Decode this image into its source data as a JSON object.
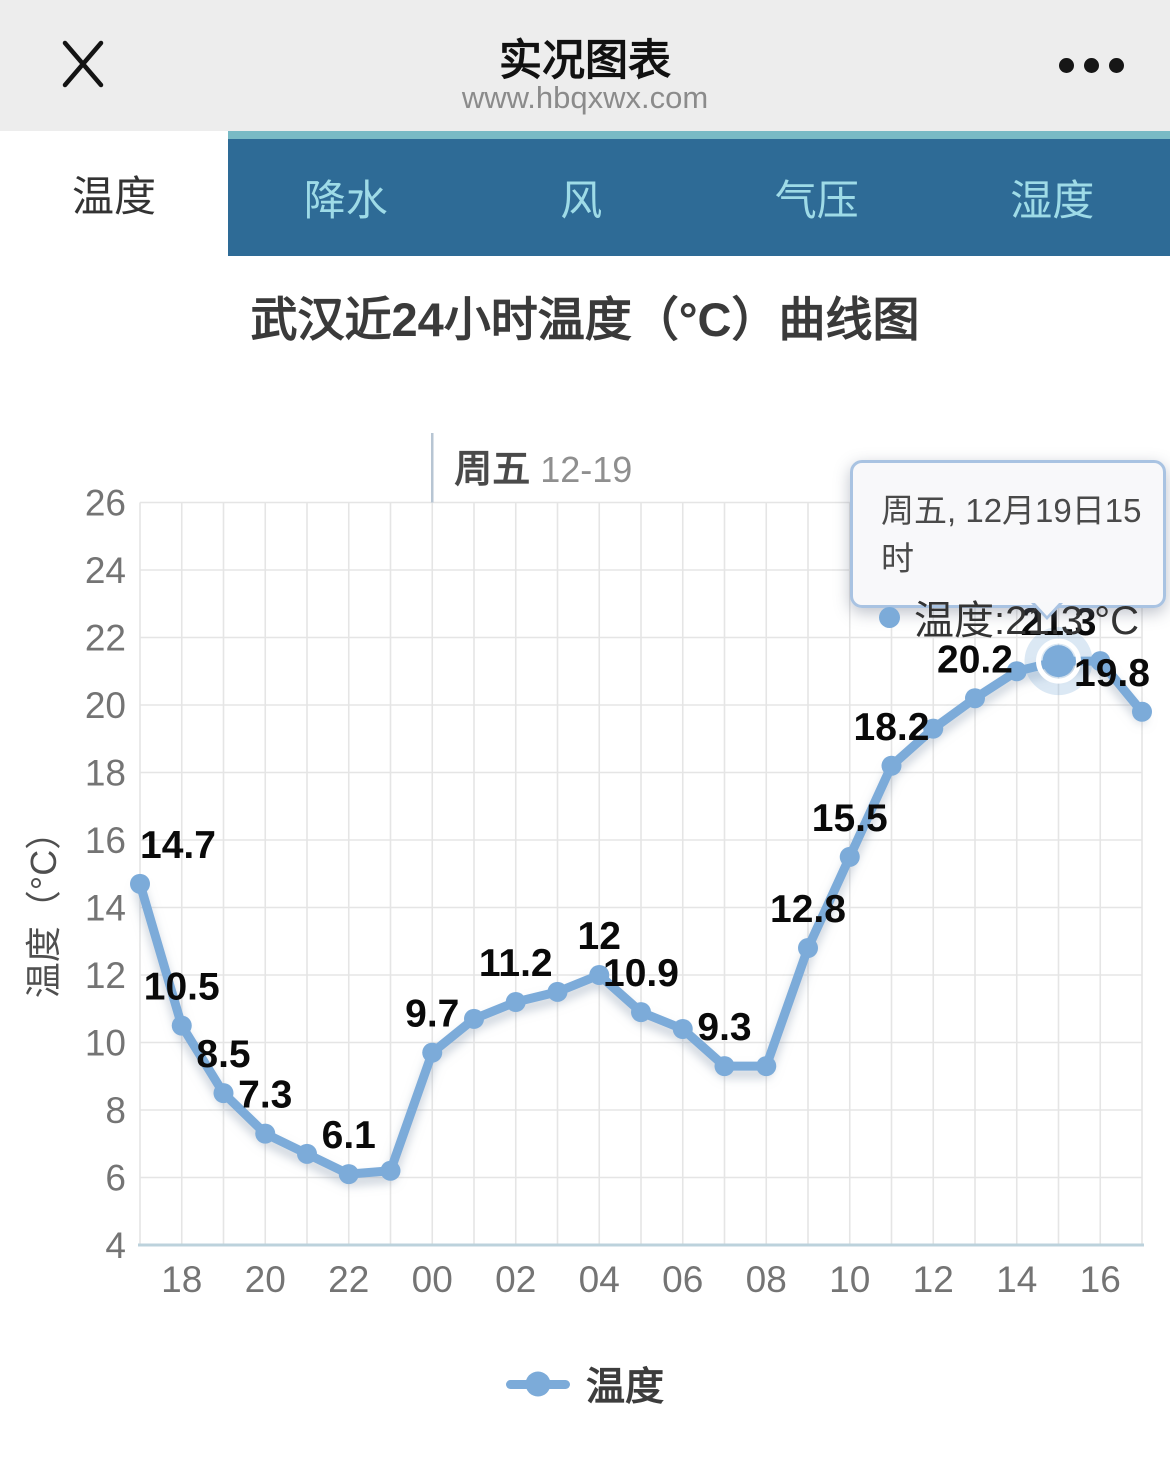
{
  "header": {
    "title": "实况图表",
    "url": "www.hbqxwx.com"
  },
  "tabs": {
    "items": [
      {
        "label": "温度",
        "active": true
      },
      {
        "label": "降水",
        "active": false
      },
      {
        "label": "风",
        "active": false
      },
      {
        "label": "气压",
        "active": false
      },
      {
        "label": "湿度",
        "active": false
      }
    ]
  },
  "page": {
    "chart_heading": "武汉近24小时温度（°C）曲线图"
  },
  "colors": {
    "line": "#7cabd9",
    "halo": "rgba(124,171,217,0.28)",
    "grid": "#e5e5e5",
    "axis_line": "#bcd2dc",
    "day_line": "#b7c5d3",
    "tick_text": "#747474",
    "point_label": "#0a0a0a",
    "axis_name": "#4f4f4f",
    "day_bold": "#4a4a4a",
    "day_light": "#8f8f8f",
    "tab_bar_bg": "#2e6b96",
    "tab_text": "#9edbe7",
    "tab_strip": "#79bac5",
    "tooltip_border": "#a9c3e2"
  },
  "chart_data": {
    "type": "line",
    "title": "武汉近24小时温度（°C）曲线图",
    "xlabel": "",
    "ylabel": "温度（°C）",
    "ylim": [
      4,
      26
    ],
    "y_tick_step": 2,
    "grid": true,
    "legend_position": "bottom",
    "series_name": "温度",
    "points": [
      {
        "x": "17",
        "y": 14.7,
        "label": "14.7",
        "label_dx": 38
      },
      {
        "x": "18",
        "y": 10.5,
        "label": "10.5"
      },
      {
        "x": "19",
        "y": 8.5,
        "label": "8.5"
      },
      {
        "x": "20",
        "y": 7.3,
        "label": "7.3"
      },
      {
        "x": "21",
        "y": 6.7
      },
      {
        "x": "22",
        "y": 6.1,
        "label": "6.1"
      },
      {
        "x": "23",
        "y": 6.2
      },
      {
        "x": "00",
        "y": 9.7,
        "label": "9.7"
      },
      {
        "x": "01",
        "y": 10.7
      },
      {
        "x": "02",
        "y": 11.2,
        "label": "11.2"
      },
      {
        "x": "03",
        "y": 11.5
      },
      {
        "x": "04",
        "y": 12,
        "label": "12"
      },
      {
        "x": "05",
        "y": 10.9,
        "label": "10.9"
      },
      {
        "x": "06",
        "y": 10.4
      },
      {
        "x": "07",
        "y": 9.3,
        "label": "9.3"
      },
      {
        "x": "08",
        "y": 9.3
      },
      {
        "x": "09",
        "y": 12.8,
        "label": "12.8"
      },
      {
        "x": "10",
        "y": 15.5,
        "label": "15.5"
      },
      {
        "x": "11",
        "y": 18.2,
        "label": "18.2"
      },
      {
        "x": "12",
        "y": 19.3
      },
      {
        "x": "13",
        "y": 20.2,
        "label": "20.2"
      },
      {
        "x": "14",
        "y": 21.0
      },
      {
        "x": "15",
        "y": 21.3,
        "label": "21.3"
      },
      {
        "x": "16",
        "y": 21.3
      },
      {
        "x": "17",
        "y": 19.8,
        "label": "19.8",
        "label_dx": -30
      }
    ],
    "day_marker": {
      "index": 7,
      "weekday": "周五",
      "date": "12-19"
    },
    "highlight_index": 22,
    "tooltip": {
      "title": "周五, 12月19日15时",
      "text": "温度:21.3 °C"
    },
    "legend": {
      "label": "温度"
    }
  }
}
